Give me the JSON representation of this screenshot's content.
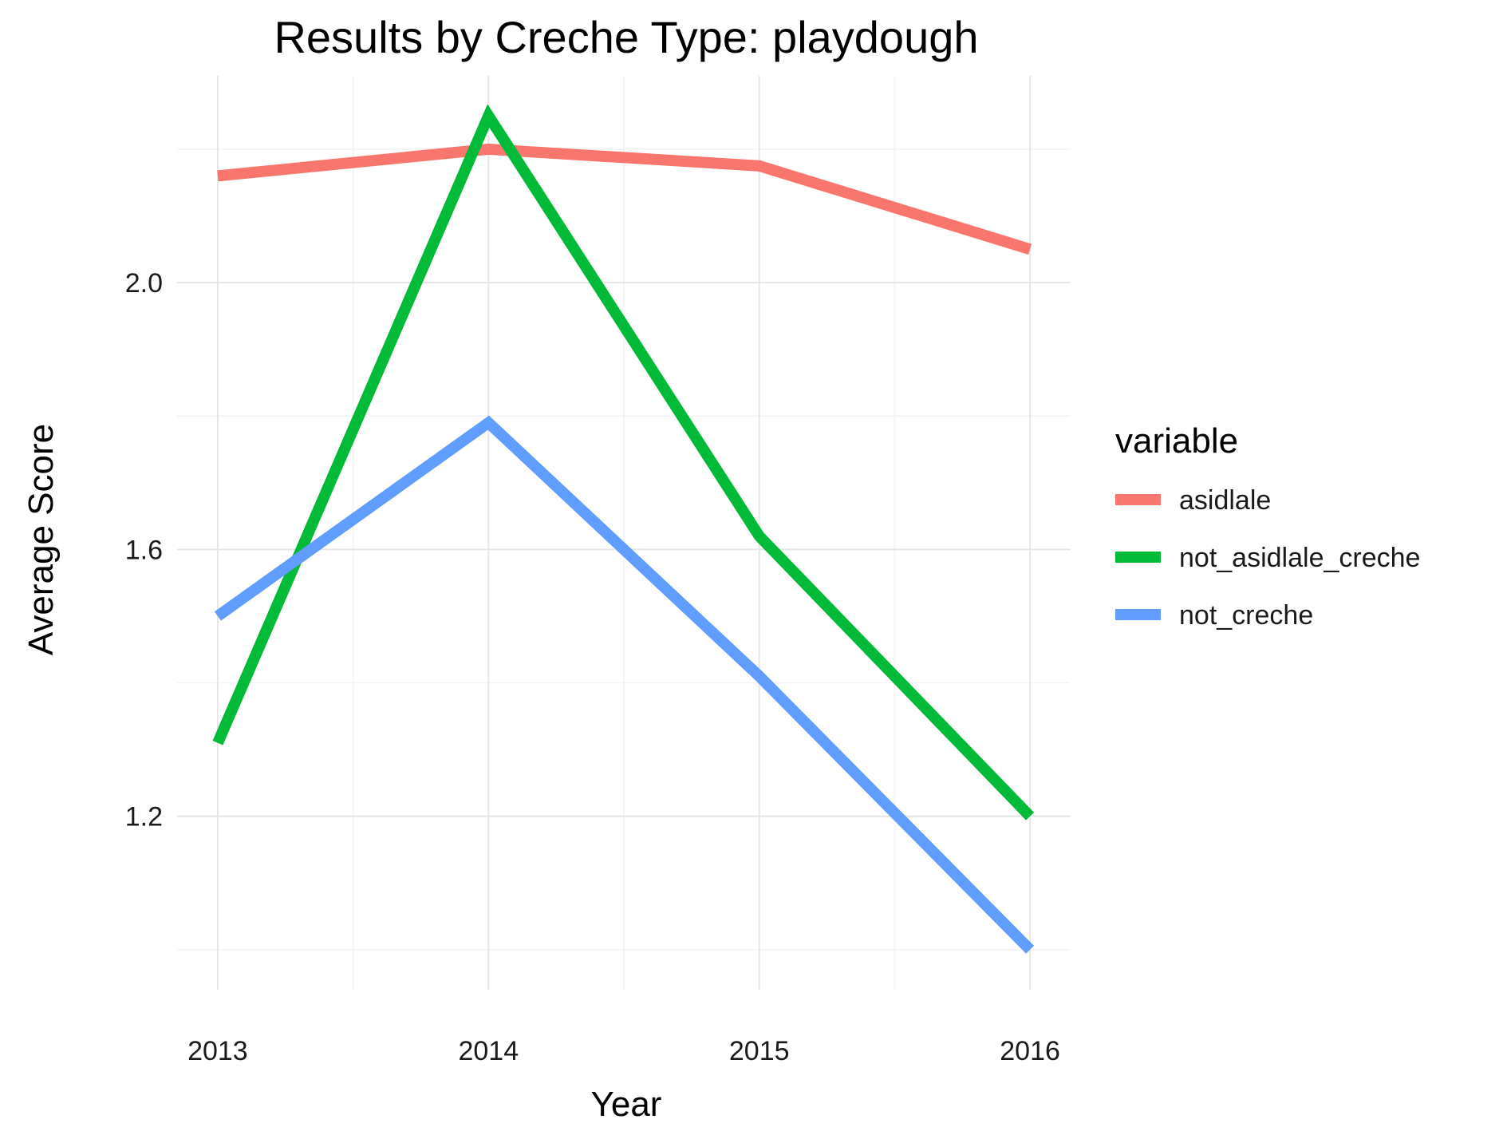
{
  "chart_data": {
    "type": "line",
    "title": "Results by Creche Type: playdough",
    "xlabel": "Year",
    "ylabel": "Average Score",
    "x": [
      2013,
      2014,
      2015,
      2016
    ],
    "x_tick_labels": [
      "2013",
      "2014",
      "2015",
      "2016"
    ],
    "ylim": [
      0.94,
      2.31
    ],
    "y_ticks": [
      1.2,
      1.6,
      2.0
    ],
    "y_tick_labels": [
      "1.2",
      "1.6",
      "2.0"
    ],
    "grid": true,
    "legend": {
      "title": "variable",
      "position": "right"
    },
    "series": [
      {
        "name": "asidlale",
        "color": "#F8766D",
        "values": [
          2.16,
          2.2,
          2.175,
          2.05
        ]
      },
      {
        "name": "not_asidlale_creche",
        "color": "#00BA38",
        "values": [
          1.31,
          2.25,
          1.62,
          1.2
        ]
      },
      {
        "name": "not_creche",
        "color": "#619CFF",
        "values": [
          1.5,
          1.79,
          1.41,
          1.0
        ]
      }
    ]
  }
}
